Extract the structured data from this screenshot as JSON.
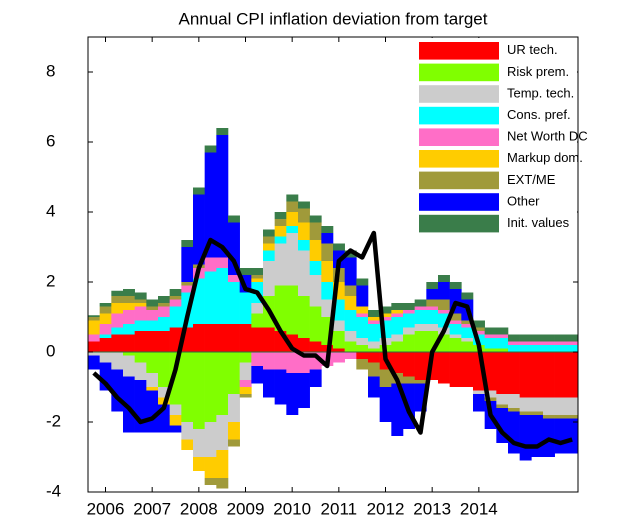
{
  "chart_data": {
    "type": "bar",
    "title": "Annual CPI inflation deviation from target",
    "categories": [
      null,
      "2006",
      null,
      null,
      null,
      "2007",
      null,
      null,
      null,
      "2008",
      null,
      null,
      null,
      "2009",
      null,
      null,
      null,
      "2010",
      null,
      null,
      null,
      "2011",
      null,
      null,
      null,
      "2012",
      null,
      null,
      null,
      "2013",
      null,
      null,
      null,
      "2014",
      null,
      null,
      null,
      null,
      null,
      null,
      null,
      null
    ],
    "ylim": [
      -4,
      9
    ],
    "yticks": [
      -4,
      -2,
      0,
      2,
      4,
      6,
      8
    ],
    "legend": "upper right",
    "series": [
      {
        "name": "UR tech.",
        "color": "#ff0000",
        "values": [
          0.3,
          0.4,
          0.5,
          0.5,
          0.6,
          0.6,
          0.6,
          0.7,
          0.7,
          0.8,
          0.8,
          0.8,
          0.8,
          0.8,
          0.7,
          0.7,
          0.6,
          0.5,
          0.4,
          0.3,
          0.2,
          0.1,
          0,
          -0.2,
          -0.3,
          -0.5,
          -0.6,
          -0.7,
          -0.8,
          -0.8,
          -0.9,
          -1.0,
          -1.0,
          -1.1,
          -1.1,
          -1.2,
          -1.2,
          -1.3,
          -1.3,
          -1.3,
          -1.3,
          -1.3
        ]
      },
      {
        "name": "Risk prem.",
        "color": "#80ff00",
        "values": [
          0,
          0,
          0,
          -0.1,
          -0.3,
          -0.6,
          -1.0,
          -1.5,
          -2.0,
          -2.2,
          -2.0,
          -1.8,
          -1.2,
          -0.3,
          0.4,
          0.9,
          1.3,
          1.4,
          1.2,
          1.0,
          0.8,
          0.5,
          0.3,
          0.2,
          0.1,
          0.2,
          0.3,
          0.5,
          0.6,
          0.6,
          0.5,
          0.4,
          0.3,
          0.2,
          0.1,
          0.1,
          0,
          0,
          0,
          0,
          0,
          0
        ]
      },
      {
        "name": "Temp. tech.",
        "color": "#cccccc",
        "values": [
          -0.1,
          -0.3,
          -0.5,
          -0.6,
          -0.5,
          -0.4,
          -0.3,
          -0.3,
          -0.5,
          -0.8,
          -1.0,
          -1.0,
          -0.8,
          -0.5,
          0.3,
          1.0,
          1.2,
          1.5,
          1.3,
          0.9,
          0.5,
          0.3,
          0.3,
          0.2,
          0.2,
          0.2,
          0.2,
          0.2,
          0.2,
          0.2,
          0.2,
          0.1,
          0.1,
          -0.1,
          -0.2,
          -0.3,
          -0.4,
          -0.4,
          -0.4,
          -0.5,
          -0.5,
          -0.5
        ]
      },
      {
        "name": "Cons. pref.",
        "color": "#00ffff",
        "values": [
          0,
          0.1,
          0.2,
          0.3,
          0.3,
          0.3,
          0.4,
          0.6,
          1.0,
          1.3,
          1.5,
          1.6,
          1.2,
          0.9,
          0.6,
          0.3,
          0.2,
          0.2,
          0.3,
          0.4,
          0.5,
          0.6,
          0.6,
          0.6,
          0.5,
          0.5,
          0.5,
          0.4,
          0.4,
          0.4,
          0.4,
          0.3,
          0.3,
          0.3,
          0.3,
          0.3,
          0.2,
          0.2,
          0.2,
          0.2,
          0.2,
          0.2
        ]
      },
      {
        "name": "Net Worth DC",
        "color": "#ff6ec7",
        "values": [
          0.2,
          0.3,
          0.4,
          0.4,
          0.4,
          0.3,
          0.3,
          0.2,
          0.2,
          0.3,
          0.4,
          0.3,
          0.2,
          -0.2,
          -0.4,
          -0.5,
          -0.5,
          -0.6,
          -0.6,
          -0.5,
          -0.4,
          -0.3,
          -0.2,
          0.1,
          0.1,
          0.1,
          0.1,
          0.1,
          0.1,
          0.1,
          0.1,
          0.1,
          0.1,
          0.1,
          0.1,
          0.1,
          0.1,
          0.1,
          0.1,
          0.1,
          0.1,
          0.1
        ]
      },
      {
        "name": "Markup dom.",
        "color": "#ffcc00",
        "values": [
          0.4,
          0.3,
          0.3,
          0.2,
          0.1,
          -0.1,
          -0.2,
          -0.3,
          -0.3,
          -0.4,
          -0.6,
          -0.8,
          -0.5,
          -0.2,
          0.1,
          0.2,
          0.3,
          0.4,
          0.5,
          0.6,
          0.6,
          0.5,
          0.4,
          0.2,
          0.1,
          0.1,
          0.1,
          0,
          0,
          0,
          0,
          0,
          0,
          0,
          0,
          0,
          0,
          0,
          0,
          0,
          0,
          0
        ]
      },
      {
        "name": "EXT/ME",
        "color": "#a09a3a",
        "values": [
          0.1,
          0.2,
          0.2,
          0.2,
          0.1,
          0.1,
          0.1,
          0.1,
          0.1,
          0.1,
          -0.2,
          -0.3,
          -0.2,
          -0.1,
          0.1,
          0.2,
          0.2,
          0.3,
          0.4,
          0.5,
          0.5,
          0.4,
          0.3,
          -0.3,
          -0.4,
          -0.5,
          -0.3,
          -0.2,
          -0.1,
          0.2,
          0.3,
          0.2,
          0.1,
          0.1,
          -0.1,
          -0.1,
          -0.1,
          -0.1,
          -0.1,
          -0.1,
          -0.1,
          -0.1
        ]
      },
      {
        "name": "Other",
        "color": "#0000ff",
        "values": [
          -0.4,
          -0.8,
          -1.2,
          -1.6,
          -1.5,
          -1.2,
          -0.8,
          -0.2,
          1.0,
          2.0,
          3.0,
          3.5,
          1.5,
          0.5,
          -0.5,
          -0.8,
          -1.0,
          -1.2,
          -1.0,
          -0.5,
          0.3,
          0.5,
          0.8,
          0.6,
          -0.6,
          -1.0,
          -1.5,
          -1.3,
          -0.8,
          0.3,
          0.5,
          0.7,
          0.6,
          -0.5,
          -0.8,
          -1.0,
          -1.2,
          -1.3,
          -1.2,
          -1.1,
          -1.0,
          -1.0
        ]
      },
      {
        "name": "Init. values",
        "color": "#3a7d4a",
        "values": [
          0.05,
          0.1,
          0.15,
          0.2,
          0.2,
          0.2,
          0.2,
          0.2,
          0.2,
          0.2,
          0.2,
          0.2,
          0.2,
          0.2,
          0.2,
          0.2,
          0.2,
          0.2,
          0.2,
          0.2,
          0.2,
          0.2,
          0.2,
          0.2,
          0.2,
          0.2,
          0.2,
          0.2,
          0.2,
          0.2,
          0.2,
          0.2,
          0.2,
          0.2,
          0.2,
          0.2,
          0.2,
          0.2,
          0.2,
          0.2,
          0.2,
          0.2
        ]
      }
    ],
    "line": {
      "color": "#000000",
      "values": [
        -0.6,
        -0.9,
        -1.3,
        -1.6,
        -2.0,
        -1.9,
        -1.6,
        -0.5,
        1.0,
        2.4,
        3.2,
        3.0,
        2.6,
        1.8,
        1.7,
        1.2,
        0.6,
        0.1,
        -0.1,
        -0.1,
        -0.4,
        2.6,
        2.9,
        2.7,
        3.4,
        -0.2,
        -0.8,
        -1.7,
        -2.3,
        0,
        0.6,
        1.4,
        1.3,
        0.2,
        -1.8,
        -2.3,
        -2.6,
        -2.7,
        -2.7,
        -2.5,
        -2.6,
        -2.5
      ]
    }
  }
}
